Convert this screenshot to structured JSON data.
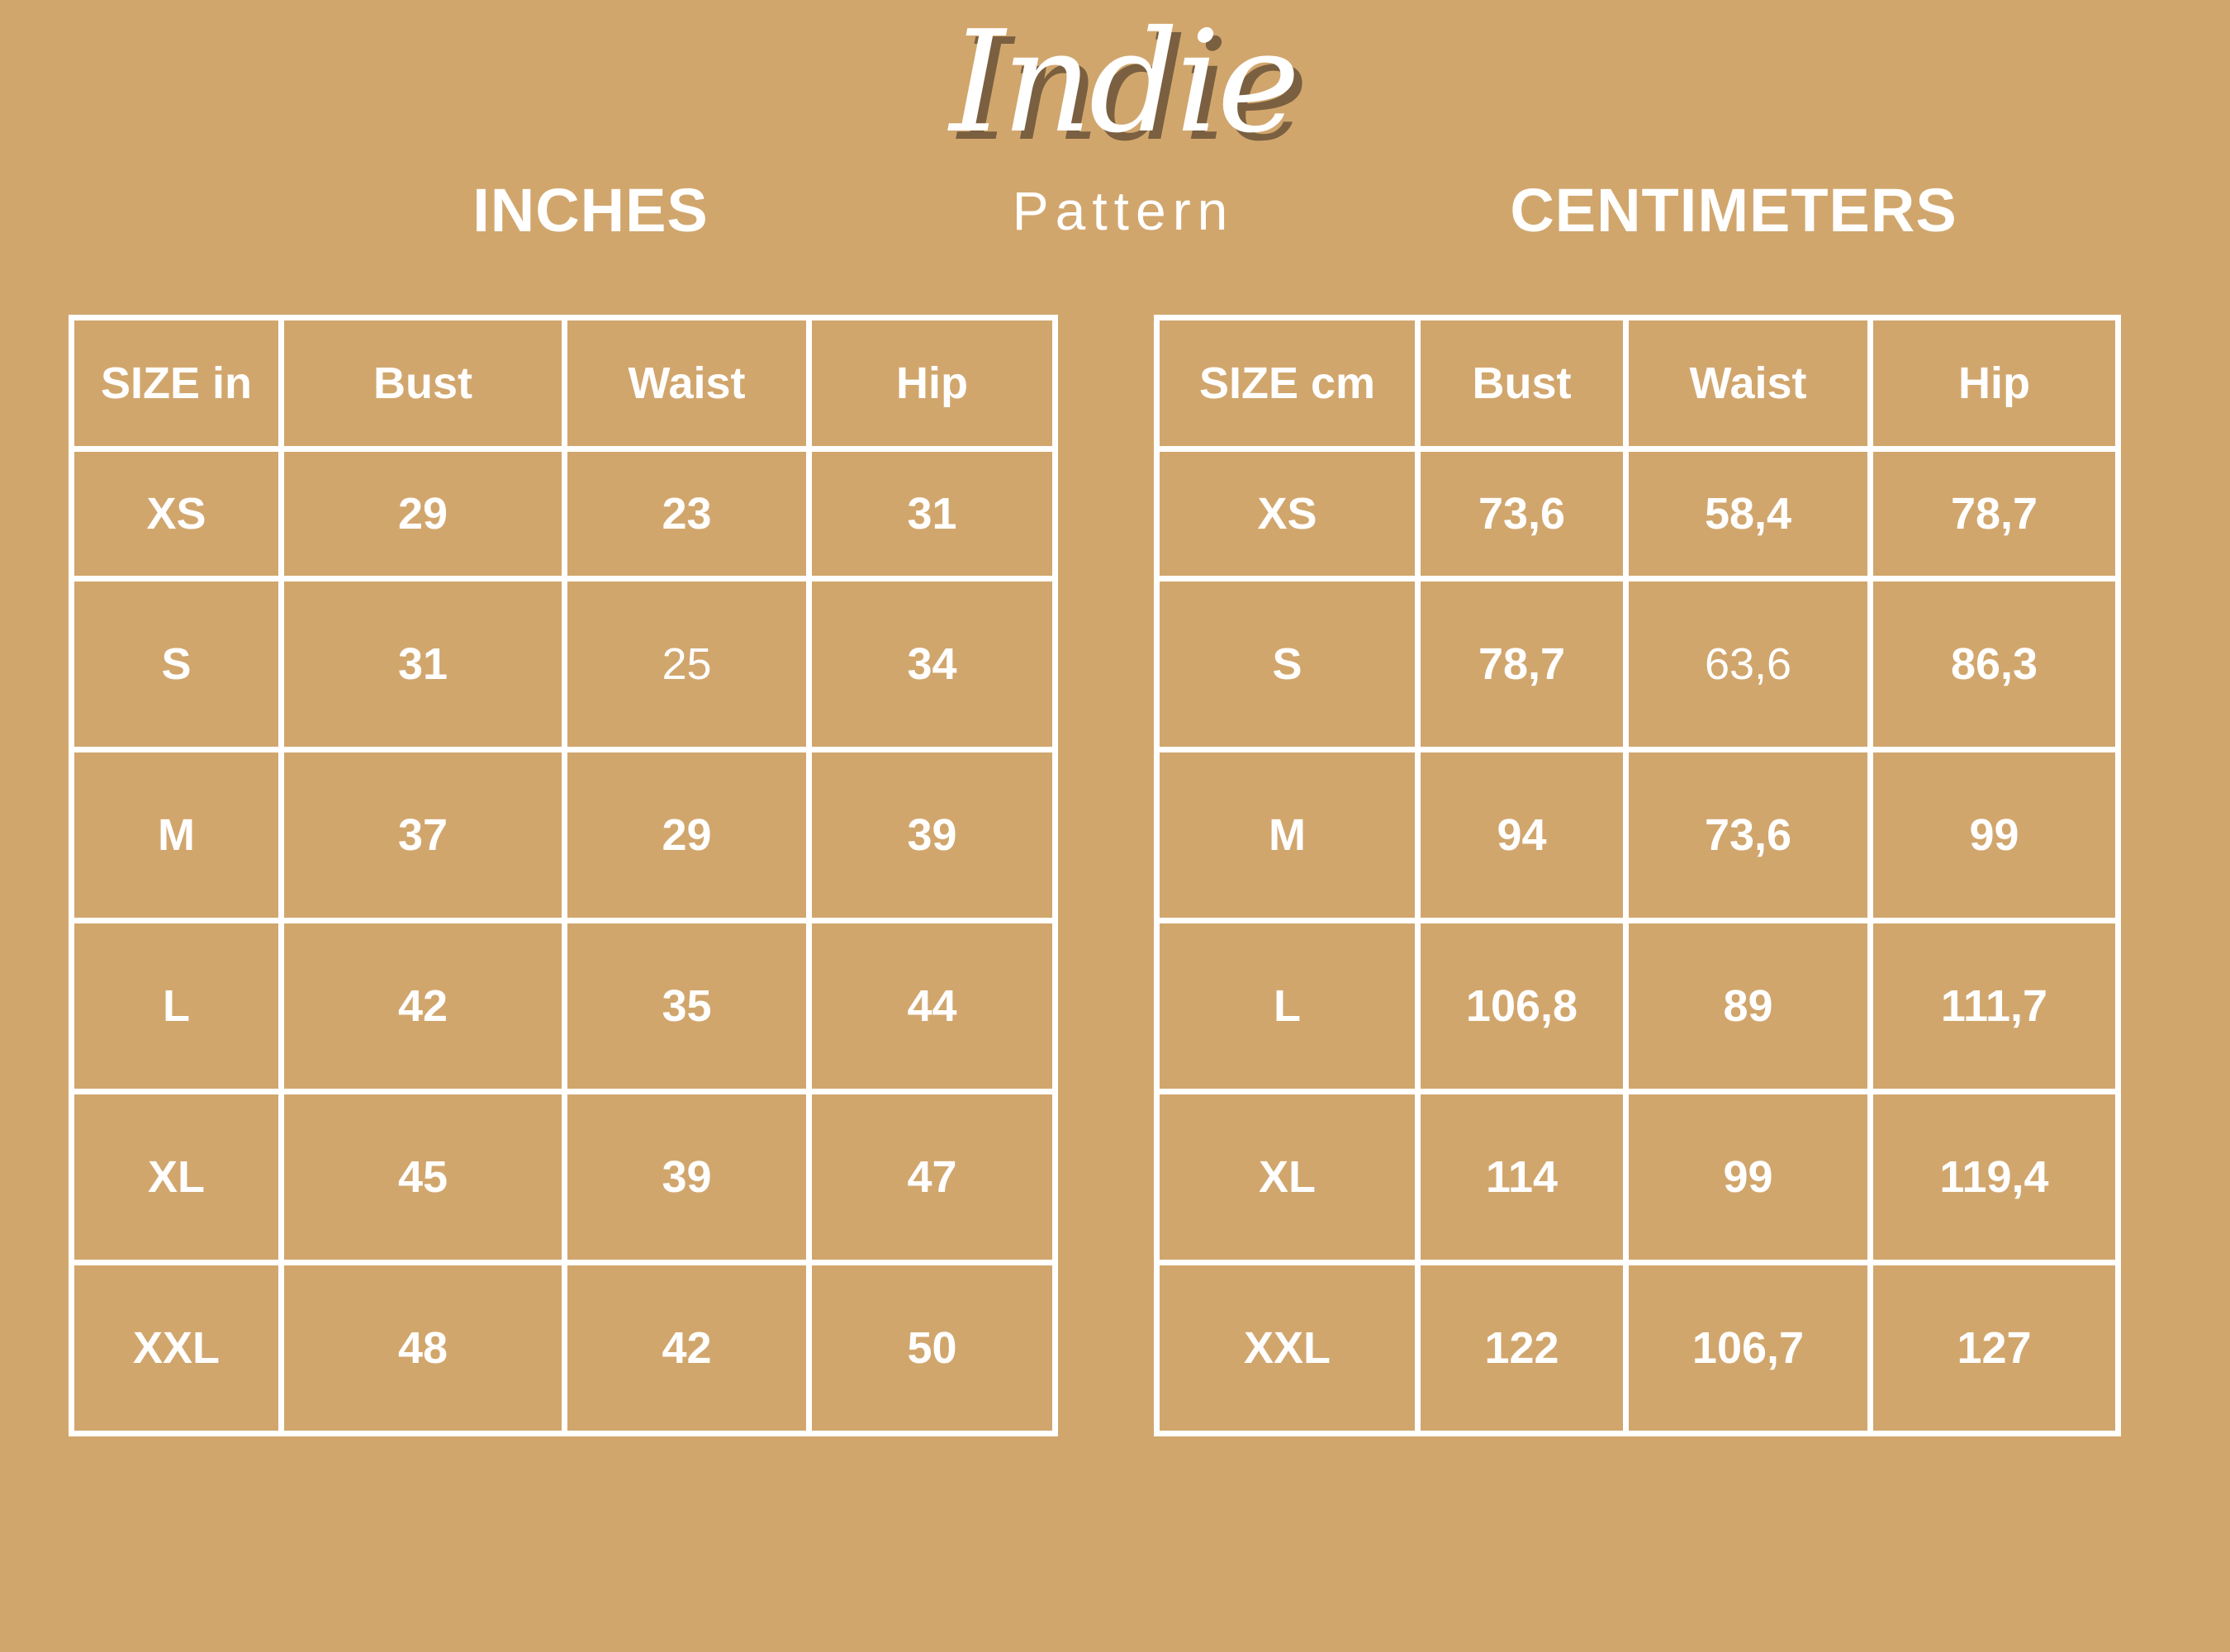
{
  "logo": {
    "script": "Indie",
    "subtitle": "Pattern",
    "shadow_color": "#7a6040"
  },
  "colors": {
    "background": "#D1A66D",
    "text": "#FFFFFF",
    "grid": "#FFFFFF"
  },
  "inches": {
    "title": "INCHES",
    "headers": [
      "SIZE in",
      "Bust",
      "Waist",
      "Hip"
    ],
    "rows": [
      [
        "XS",
        "29",
        "23",
        "31"
      ],
      [
        "S",
        "31",
        "25",
        "34"
      ],
      [
        "M",
        "37",
        "29",
        "39"
      ],
      [
        "L",
        "42",
        "35",
        "44"
      ],
      [
        "XL",
        "45",
        "39",
        "47"
      ],
      [
        "XXL",
        "48",
        "42",
        "50"
      ]
    ],
    "light_cells": [
      [
        1,
        2
      ]
    ]
  },
  "centimeters": {
    "title": "CENTIMETERS",
    "headers": [
      "SIZE cm",
      "Bust",
      "Waist",
      "Hip"
    ],
    "rows": [
      [
        "XS",
        "73,6",
        "58,4",
        "78,7"
      ],
      [
        "S",
        "78,7",
        "63,6",
        "86,3"
      ],
      [
        "M",
        "94",
        "73,6",
        "99"
      ],
      [
        "L",
        "106,8",
        "89",
        "111,7"
      ],
      [
        "XL",
        "114",
        "99",
        "119,4"
      ],
      [
        "XXL",
        "122",
        "106,7",
        "127"
      ]
    ],
    "light_cells": [
      [
        1,
        2
      ]
    ]
  }
}
